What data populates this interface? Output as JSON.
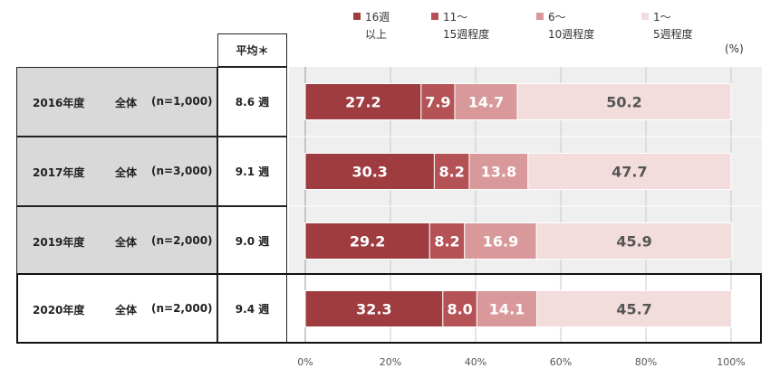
{
  "legend": [
    {
      "line1": "16週",
      "line2": "以上",
      "color": "#9e3c40"
    },
    {
      "line1": "11～",
      "line2": "15週程度",
      "color": "#b55256"
    },
    {
      "line1": "6～",
      "line2": "10週程度",
      "color": "#d9999b"
    },
    {
      "line1": "1～",
      "line2": "5週程度",
      "color": "#f2dcdc"
    }
  ],
  "header": {
    "avg_label": "平均＊",
    "unit_label": "(%)"
  },
  "rows": [
    {
      "year": "2016年度",
      "group": "全体",
      "n": "(n=1,000)",
      "avg": "8.6 週"
    },
    {
      "year": "2017年度",
      "group": "全体",
      "n": "(n=3,000)",
      "avg": "9.1 週"
    },
    {
      "year": "2019年度",
      "group": "全体",
      "n": "(n=2,000)",
      "avg": "9.0 週"
    },
    {
      "year": "2020年度",
      "group": "全体",
      "n": "(n=2,000)",
      "avg": "9.4 週"
    }
  ],
  "chart_data": {
    "type": "bar",
    "orientation": "horizontal",
    "stacked": true,
    "categories": [
      "2016年度",
      "2017年度",
      "2019年度",
      "2020年度"
    ],
    "series": [
      {
        "name": "16週以上",
        "values": [
          27.2,
          30.3,
          29.2,
          32.3
        ],
        "color": "#9e3c40"
      },
      {
        "name": "11～15週程度",
        "values": [
          7.9,
          8.2,
          8.2,
          8.0
        ],
        "color": "#b55256"
      },
      {
        "name": "6～10週程度",
        "values": [
          14.7,
          13.8,
          16.9,
          14.1
        ],
        "color": "#d9999b"
      },
      {
        "name": "1～5週程度",
        "values": [
          50.2,
          47.7,
          45.9,
          45.7
        ],
        "color": "#f2dcdc"
      }
    ],
    "xlim": [
      0,
      100
    ],
    "xticks": [
      "0%",
      "20%",
      "40%",
      "60%",
      "80%",
      "100%"
    ],
    "grid": true,
    "legend_position": "top"
  }
}
